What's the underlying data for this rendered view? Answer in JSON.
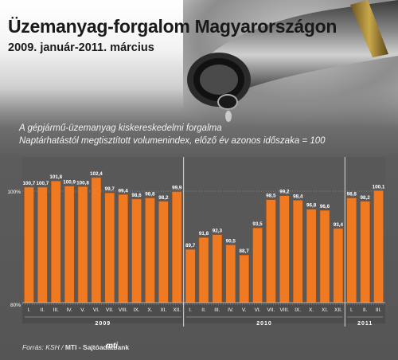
{
  "header": {
    "title": "Üzemanyag-forgalom Magyarországon",
    "subtitle": "2009. január-2011. március",
    "desc_line1": "A gépjármű-üzemanyag kiskereskedelmi forgalma",
    "desc_line2": "Naptárhatástól megtisztított volumenindex, előző év azonos időszaka = 100"
  },
  "footer": {
    "source_prefix": "Forrás: KSH / ",
    "source_bold": "MTI - Sajtóadatbank",
    "logo": "mti"
  },
  "colors": {
    "bar": "#f07a22",
    "bar_edge": "#b0500f",
    "panel": "#4c4c4c",
    "grid": "#8a8a8a",
    "text": "#ffffff"
  },
  "chart_data": {
    "type": "bar",
    "title": "",
    "xlabel": "",
    "ylabel": "",
    "ylim": [
      80,
      104
    ],
    "yticks": [
      80,
      100
    ],
    "ytick_labels": [
      "80%",
      "100%"
    ],
    "data_labels_shown": true,
    "categories": [
      "I.",
      "II.",
      "III.",
      "IV.",
      "V.",
      "VI.",
      "VII.",
      "VIII.",
      "IX.",
      "X.",
      "XI.",
      "XII.",
      "I.",
      "II.",
      "III.",
      "IV.",
      "V.",
      "VI.",
      "VII.",
      "VIII.",
      "IX.",
      "X.",
      "XI.",
      "XII.",
      "I.",
      "II.",
      "III."
    ],
    "year_groups": [
      {
        "label": "2009",
        "count": 12
      },
      {
        "label": "2010",
        "count": 12
      },
      {
        "label": "2011",
        "count": 3
      }
    ],
    "values": [
      100.7,
      100.7,
      101.8,
      100.9,
      100.8,
      102.4,
      99.7,
      99.4,
      98.6,
      98.8,
      98.2,
      99.9,
      89.7,
      91.8,
      92.3,
      90.5,
      88.7,
      93.5,
      98.5,
      99.2,
      98.4,
      96.8,
      96.6,
      93.4,
      98.8,
      98.2,
      100.1
    ],
    "value_labels": [
      "100,7",
      "100,7",
      "101,8",
      "100,9",
      "100,8",
      "102,4",
      "99,7",
      "99,4",
      "98,6",
      "98,8",
      "98,2",
      "99,9",
      "89,7",
      "91,8",
      "92,3",
      "90,5",
      "88,7",
      "93,5",
      "98,5",
      "99,2",
      "98,4",
      "96,8",
      "96,6",
      "93,4",
      "98,8",
      "98,2",
      "100,1"
    ]
  }
}
